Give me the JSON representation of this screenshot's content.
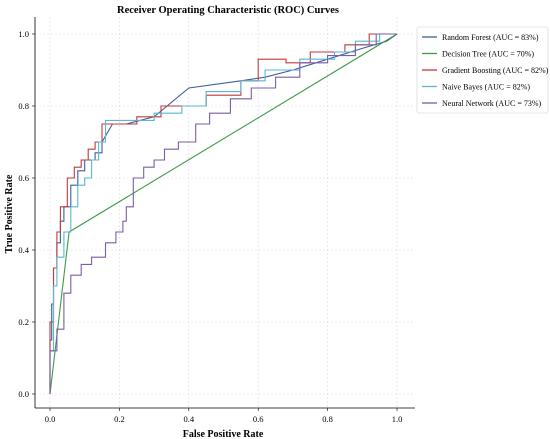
{
  "chart_data": {
    "type": "line",
    "title": "Receiver Operating Characteristic (ROC) Curves",
    "xlabel": "False Positive Rate",
    "ylabel": "True Positive Rate",
    "xlim": [
      0,
      1
    ],
    "ylim": [
      0,
      1
    ],
    "xticks": [
      0.0,
      0.2,
      0.4,
      0.6,
      0.8,
      1.0
    ],
    "yticks": [
      0.0,
      0.2,
      0.4,
      0.6,
      0.8,
      1.0
    ],
    "xtick_labels": [
      "0.0",
      "0.2",
      "0.4",
      "0.6",
      "0.8",
      "1.0"
    ],
    "ytick_labels": [
      "0.0",
      "0.2",
      "0.4",
      "0.6",
      "0.8",
      "1.0"
    ],
    "grid": true,
    "legend_position": "upper right, outside plot",
    "series": [
      {
        "name": "Random Forest (AUC = 83%)",
        "color": "#3a5fa0",
        "x": [
          0,
          0,
          0.005,
          0.005,
          0.01,
          0.01,
          0.02,
          0.02,
          0.03,
          0.03,
          0.04,
          0.04,
          0.06,
          0.06,
          0.08,
          0.08,
          0.1,
          0.1,
          0.13,
          0.13,
          0.15,
          0.15,
          0.18,
          0.22,
          0.3,
          0.4,
          0.55,
          0.62,
          0.7,
          0.8,
          0.9,
          0.97,
          1.0
        ],
        "y": [
          0,
          0.15,
          0.15,
          0.25,
          0.25,
          0.35,
          0.35,
          0.42,
          0.42,
          0.48,
          0.48,
          0.52,
          0.52,
          0.58,
          0.58,
          0.62,
          0.62,
          0.65,
          0.65,
          0.67,
          0.67,
          0.7,
          0.75,
          0.75,
          0.77,
          0.85,
          0.87,
          0.88,
          0.9,
          0.93,
          0.96,
          0.98,
          1.0
        ]
      },
      {
        "name": "Decision Tree (AUC = 70%)",
        "color": "#3c9a48",
        "x": [
          0,
          0.055,
          1.0
        ],
        "y": [
          0,
          0.45,
          1.0
        ]
      },
      {
        "name": "Gradient Boosting (AUC = 82%)",
        "color": "#c23a3a",
        "x": [
          0,
          0,
          0.01,
          0.01,
          0.02,
          0.02,
          0.03,
          0.03,
          0.05,
          0.05,
          0.07,
          0.07,
          0.09,
          0.09,
          0.11,
          0.11,
          0.13,
          0.13,
          0.15,
          0.15,
          0.25,
          0.25,
          0.32,
          0.32,
          0.45,
          0.45,
          0.55,
          0.55,
          0.6,
          0.6,
          0.68,
          0.68,
          0.75,
          0.75,
          0.85,
          0.85,
          0.92,
          0.92,
          1.0
        ],
        "y": [
          0,
          0.2,
          0.2,
          0.35,
          0.35,
          0.45,
          0.45,
          0.52,
          0.52,
          0.6,
          0.6,
          0.63,
          0.63,
          0.65,
          0.65,
          0.68,
          0.68,
          0.7,
          0.7,
          0.75,
          0.75,
          0.77,
          0.77,
          0.8,
          0.8,
          0.83,
          0.83,
          0.87,
          0.87,
          0.93,
          0.93,
          0.92,
          0.92,
          0.95,
          0.95,
          0.97,
          0.97,
          1.0,
          1.0
        ]
      },
      {
        "name": "Naive Bayes (AUC = 82%)",
        "color": "#59b7d1",
        "x": [
          0,
          0,
          0.01,
          0.01,
          0.02,
          0.02,
          0.04,
          0.04,
          0.06,
          0.06,
          0.08,
          0.08,
          0.1,
          0.1,
          0.12,
          0.12,
          0.14,
          0.14,
          0.16,
          0.16,
          0.3,
          0.3,
          0.38,
          0.38,
          0.45,
          0.45,
          0.55,
          0.55,
          0.62,
          0.62,
          0.72,
          0.72,
          0.82,
          0.82,
          0.88,
          0.88,
          0.95,
          0.95,
          1.0
        ],
        "y": [
          0,
          0.12,
          0.12,
          0.3,
          0.3,
          0.38,
          0.38,
          0.45,
          0.45,
          0.52,
          0.52,
          0.58,
          0.58,
          0.6,
          0.6,
          0.65,
          0.65,
          0.7,
          0.7,
          0.76,
          0.76,
          0.78,
          0.78,
          0.8,
          0.8,
          0.84,
          0.84,
          0.87,
          0.87,
          0.9,
          0.9,
          0.93,
          0.93,
          0.95,
          0.95,
          0.98,
          0.98,
          1.0,
          1.0
        ]
      },
      {
        "name": "Neural Network (AUC = 73%)",
        "color": "#7a5ca8",
        "x": [
          0,
          0,
          0.02,
          0.02,
          0.04,
          0.04,
          0.06,
          0.06,
          0.09,
          0.09,
          0.12,
          0.12,
          0.16,
          0.16,
          0.19,
          0.19,
          0.21,
          0.21,
          0.22,
          0.22,
          0.24,
          0.24,
          0.27,
          0.27,
          0.3,
          0.3,
          0.33,
          0.33,
          0.37,
          0.37,
          0.42,
          0.42,
          0.46,
          0.46,
          0.52,
          0.52,
          0.58,
          0.58,
          0.65,
          0.65,
          0.72,
          0.72,
          0.8,
          0.8,
          0.88,
          0.88,
          0.94,
          0.94,
          1.0
        ],
        "y": [
          0,
          0.12,
          0.12,
          0.18,
          0.18,
          0.28,
          0.28,
          0.33,
          0.33,
          0.36,
          0.36,
          0.38,
          0.38,
          0.42,
          0.42,
          0.45,
          0.45,
          0.48,
          0.48,
          0.52,
          0.52,
          0.6,
          0.6,
          0.63,
          0.63,
          0.65,
          0.65,
          0.68,
          0.68,
          0.7,
          0.7,
          0.75,
          0.75,
          0.78,
          0.78,
          0.82,
          0.82,
          0.85,
          0.85,
          0.88,
          0.88,
          0.92,
          0.92,
          0.94,
          0.94,
          0.97,
          0.97,
          1.0,
          1.0
        ]
      }
    ]
  }
}
